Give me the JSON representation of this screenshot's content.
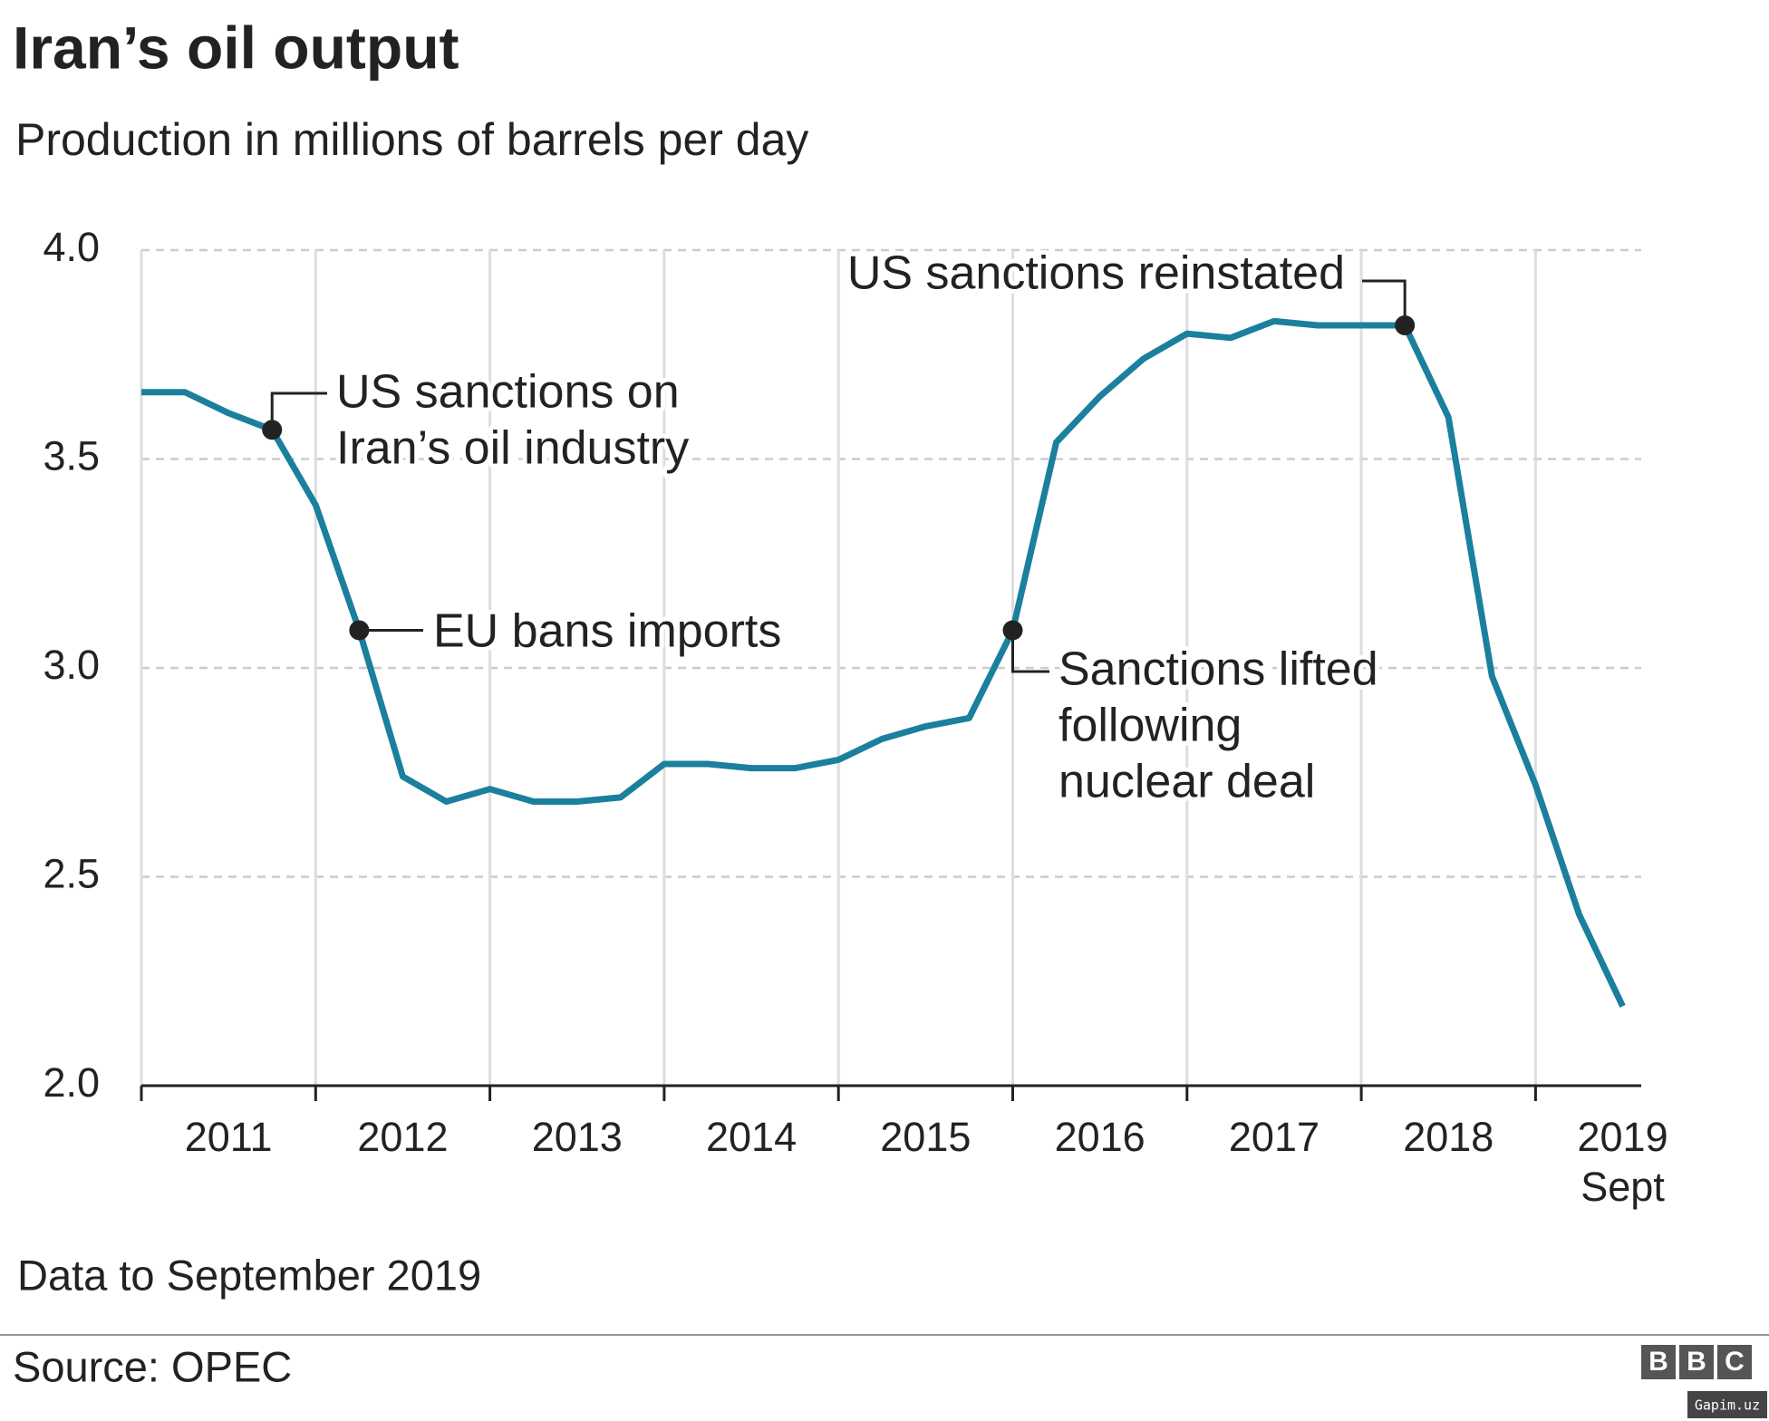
{
  "chart_data": {
    "type": "line",
    "title": "Iran’s oil output",
    "subtitle": "Production in millions of barrels per day",
    "x": [
      2011,
      2011.25,
      2011.5,
      2011.75,
      2012,
      2012.25,
      2012.5,
      2012.75,
      2013,
      2013.25,
      2013.5,
      2013.75,
      2014,
      2014.25,
      2014.5,
      2014.75,
      2015,
      2015.25,
      2015.5,
      2015.75,
      2016,
      2016.25,
      2016.5,
      2016.75,
      2017,
      2017.25,
      2017.5,
      2017.75,
      2018,
      2018.25,
      2018.5,
      2018.75,
      2019,
      2019.25,
      2019.5
    ],
    "series": [
      {
        "name": "Production",
        "color": "#1b7f9e",
        "values": [
          3.66,
          3.66,
          3.61,
          3.57,
          3.39,
          3.09,
          2.74,
          2.68,
          2.71,
          2.68,
          2.68,
          2.69,
          2.77,
          2.77,
          2.76,
          2.76,
          2.78,
          2.83,
          2.86,
          2.88,
          3.09,
          3.54,
          3.65,
          3.74,
          3.8,
          3.79,
          3.83,
          3.82,
          3.82,
          3.82,
          3.6,
          2.98,
          2.72,
          2.41,
          2.19
        ]
      }
    ],
    "xlim": [
      2011,
      2019.61
    ],
    "xticks": [
      2011,
      2012,
      2013,
      2014,
      2015,
      2016,
      2017,
      2018,
      {
        "value": 2019,
        "label": "2019 Sept"
      }
    ],
    "ylim": [
      2.0,
      4.0
    ],
    "yticks": [
      {
        "value": 2.0,
        "label": "2.0"
      },
      2.5,
      {
        "value": 3.0,
        "label": "3.0"
      },
      3.5,
      {
        "value": 4.0,
        "label": "4.0"
      }
    ],
    "grid": true,
    "annotations": [
      {
        "lines": [
          "US sanctions on",
          "Iran’s oil industry"
        ]
      },
      {
        "lines": [
          "EU bans imports"
        ]
      },
      {
        "lines": [
          "Sanctions lifted",
          "following",
          "nuclear deal"
        ]
      },
      {
        "lines": [
          "US sanctions reinstated"
        ]
      }
    ],
    "note": "Data to September 2019",
    "source": "Source: OPEC",
    "logo": [
      "B",
      "B",
      "C"
    ],
    "watermark": "Gapim.uz"
  }
}
